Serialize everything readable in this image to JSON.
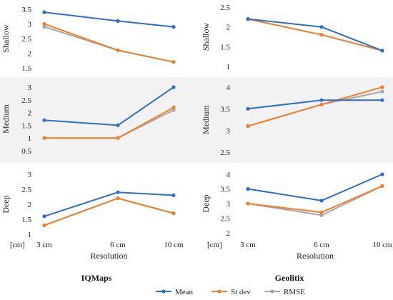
{
  "chart_data": {
    "type": "line",
    "categories": [
      "3 cm",
      "6 cm",
      "10 cm"
    ],
    "xlabel": "Resolution",
    "unit_label": "[cm]",
    "legend_position": "bottom",
    "colors": {
      "Mean": "#2E6FC5",
      "St dev": "#F07F2D",
      "RMSE": "#A6A6A6"
    },
    "legend": [
      "Mean",
      "St dev",
      "RMSE"
    ],
    "columns": [
      {
        "title": "IQMaps",
        "panels": [
          {
            "ylabel": "Shallow",
            "ylim": [
              1.5,
              3.5
            ],
            "yticks": [
              "1.5",
              "2",
              "2.5",
              "3",
              "3.5"
            ],
            "series": [
              {
                "name": "Mean",
                "values": [
                  3.4,
                  3.1,
                  2.9
                ]
              },
              {
                "name": "St dev",
                "values": [
                  3.0,
                  2.1,
                  1.7
                ]
              },
              {
                "name": "RMSE",
                "values": [
                  2.9,
                  2.1,
                  1.7
                ]
              }
            ]
          },
          {
            "ylabel": "Medium",
            "ylim": [
              0.5,
              3
            ],
            "yticks": [
              "0.5",
              "1",
              "1.5",
              "2",
              "2.5",
              "3"
            ],
            "series": [
              {
                "name": "Mean",
                "values": [
                  1.7,
                  1.5,
                  3.0
                ]
              },
              {
                "name": "St dev",
                "values": [
                  1.0,
                  1.0,
                  2.2
                ]
              },
              {
                "name": "RMSE",
                "values": [
                  1.0,
                  1.0,
                  2.1
                ]
              }
            ]
          },
          {
            "ylabel": "Deep",
            "ylim": [
              1,
              3
            ],
            "yticks": [
              "1",
              "1.5",
              "2",
              "2.5",
              "3"
            ],
            "series": [
              {
                "name": "Mean",
                "values": [
                  1.6,
                  2.4,
                  2.3
                ]
              },
              {
                "name": "St dev",
                "values": [
                  1.3,
                  2.2,
                  1.7
                ]
              },
              {
                "name": "RMSE",
                "values": [
                  1.3,
                  2.2,
                  1.7
                ]
              }
            ]
          }
        ]
      },
      {
        "title": "Geolitix",
        "panels": [
          {
            "ylabel": "Shallow",
            "ylim": [
              1,
              2.5
            ],
            "yticks": [
              "1",
              "1.5",
              "2",
              "2.5"
            ],
            "series": [
              {
                "name": "Mean",
                "values": [
                  2.2,
                  2.0,
                  1.4
                ]
              },
              {
                "name": "St dev",
                "values": [
                  2.2,
                  1.8,
                  1.4
                ]
              },
              {
                "name": "RMSE",
                "values": [
                  2.2,
                  1.8,
                  1.4
                ]
              }
            ]
          },
          {
            "ylabel": "Medium",
            "ylim": [
              2.5,
              4
            ],
            "yticks": [
              "2.5",
              "3",
              "3.5",
              "4"
            ],
            "series": [
              {
                "name": "Mean",
                "values": [
                  3.5,
                  3.7,
                  3.7
                ]
              },
              {
                "name": "St dev",
                "values": [
                  3.1,
                  3.6,
                  4.0
                ]
              },
              {
                "name": "RMSE",
                "values": [
                  3.1,
                  3.6,
                  3.9
                ]
              }
            ]
          },
          {
            "ylabel": "Deep",
            "ylim": [
              2,
              4
            ],
            "yticks": [
              "2",
              "2.5",
              "3",
              "3.5",
              "4"
            ],
            "series": [
              {
                "name": "Mean",
                "values": [
                  3.5,
                  3.1,
                  4.0
                ]
              },
              {
                "name": "St dev",
                "values": [
                  3.0,
                  2.7,
                  3.6
                ]
              },
              {
                "name": "RMSE",
                "values": [
                  3.0,
                  2.6,
                  3.6
                ]
              }
            ]
          }
        ]
      }
    ]
  }
}
